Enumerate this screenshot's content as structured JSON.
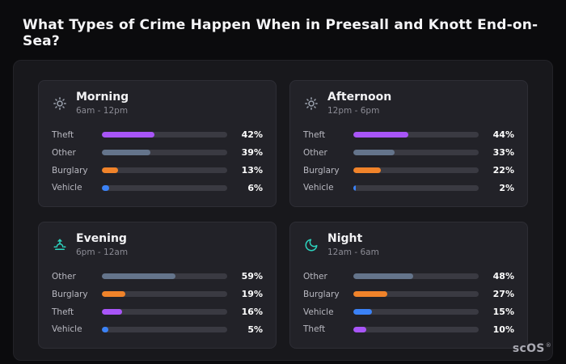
{
  "page": {
    "title": "What Types of Crime Happen When in Preesall and Knott End-on-Sea?",
    "brand": "scOS",
    "brand_mark": "®"
  },
  "colors": {
    "Theft": "#a855f7",
    "Other": "#64748b",
    "Burglary": "#f0832a",
    "Vehicle": "#3b82f6",
    "bar_track": "#3a3a42",
    "panel_bg": "#222228",
    "board_bg": "#18181c",
    "page_bg": "#0b0b0d",
    "icon_gray": "#9ca3af",
    "icon_teal": "#2dd4bf"
  },
  "chart_data": [
    {
      "type": "bar",
      "orientation": "horizontal",
      "title": "Morning",
      "subtitle": "6am - 12pm",
      "icon": "sun-icon",
      "icon_color": "#9ca3af",
      "categories": [
        "Theft",
        "Other",
        "Burglary",
        "Vehicle"
      ],
      "values": [
        42,
        39,
        13,
        6
      ],
      "value_labels": [
        "42%",
        "39%",
        "13%",
        "6%"
      ],
      "xlim": [
        0,
        100
      ]
    },
    {
      "type": "bar",
      "orientation": "horizontal",
      "title": "Afternoon",
      "subtitle": "12pm - 6pm",
      "icon": "sun-icon",
      "icon_color": "#9ca3af",
      "categories": [
        "Theft",
        "Other",
        "Burglary",
        "Vehicle"
      ],
      "values": [
        44,
        33,
        22,
        2
      ],
      "value_labels": [
        "44%",
        "33%",
        "22%",
        "2%"
      ],
      "xlim": [
        0,
        100
      ]
    },
    {
      "type": "bar",
      "orientation": "horizontal",
      "title": "Evening",
      "subtitle": "6pm - 12am",
      "icon": "sunset-icon",
      "icon_color": "#2dd4bf",
      "categories": [
        "Other",
        "Burglary",
        "Theft",
        "Vehicle"
      ],
      "values": [
        59,
        19,
        16,
        5
      ],
      "value_labels": [
        "59%",
        "19%",
        "16%",
        "5%"
      ],
      "xlim": [
        0,
        100
      ]
    },
    {
      "type": "bar",
      "orientation": "horizontal",
      "title": "Night",
      "subtitle": "12am - 6am",
      "icon": "moon-icon",
      "icon_color": "#2dd4bf",
      "categories": [
        "Other",
        "Burglary",
        "Vehicle",
        "Theft"
      ],
      "values": [
        48,
        27,
        15,
        10
      ],
      "value_labels": [
        "48%",
        "27%",
        "15%",
        "10%"
      ],
      "xlim": [
        0,
        100
      ]
    }
  ]
}
